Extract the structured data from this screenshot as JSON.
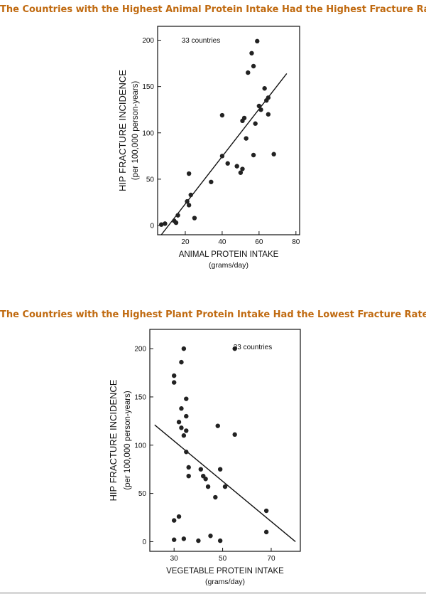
{
  "chart_data": [
    {
      "type": "scatter",
      "title": "The Countries with the Highest Animal Protein Intake Had the Highest Fracture Rates",
      "annotation": "33 countries",
      "ylabel": "HIP FRACTURE INCIDENCE",
      "ylabel_unit": "(per 100,000 person-years)",
      "xlabel": "ANIMAL PROTEIN INTAKE",
      "xlabel_unit": "(grams/day)",
      "xlim": [
        5,
        82
      ],
      "ylim": [
        -10,
        215
      ],
      "xticks": [
        20,
        40,
        60,
        80
      ],
      "yticks": [
        0,
        50,
        100,
        150,
        200
      ],
      "points": [
        [
          7,
          1
        ],
        [
          9,
          2
        ],
        [
          14,
          5
        ],
        [
          15,
          3
        ],
        [
          16,
          11
        ],
        [
          21,
          26
        ],
        [
          22,
          22
        ],
        [
          22,
          56
        ],
        [
          23,
          33
        ],
        [
          25,
          8
        ],
        [
          34,
          47
        ],
        [
          40,
          75
        ],
        [
          40,
          119
        ],
        [
          43,
          67
        ],
        [
          48,
          64
        ],
        [
          50,
          57
        ],
        [
          51,
          113
        ],
        [
          51,
          61
        ],
        [
          52,
          116
        ],
        [
          53,
          94
        ],
        [
          54,
          165
        ],
        [
          56,
          186
        ],
        [
          57,
          172
        ],
        [
          57,
          76
        ],
        [
          58,
          110
        ],
        [
          59,
          199
        ],
        [
          60,
          129
        ],
        [
          61,
          125
        ],
        [
          63,
          148
        ],
        [
          65,
          138
        ],
        [
          65,
          120
        ],
        [
          68,
          77
        ],
        [
          64,
          135
        ]
      ],
      "trend": [
        [
          7,
          -10
        ],
        [
          75,
          164
        ]
      ]
    },
    {
      "type": "scatter",
      "title": "The Countries with the Highest Plant Protein Intake Had the Lowest Fracture Rates",
      "annotation": "33 countries",
      "ylabel": "HIP FRACTURE INCIDENCE",
      "ylabel_unit": "(per 100,000 person-years)",
      "xlabel": "VEGETABLE PROTEIN INTAKE",
      "xlabel_unit": "(grams/day)",
      "xlim": [
        20,
        82
      ],
      "ylim": [
        -10,
        220
      ],
      "xticks": [
        30,
        50,
        70
      ],
      "yticks": [
        0,
        50,
        100,
        150,
        200
      ],
      "points": [
        [
          30,
          172
        ],
        [
          30,
          165
        ],
        [
          30,
          22
        ],
        [
          30,
          2
        ],
        [
          32,
          124
        ],
        [
          32,
          26
        ],
        [
          33,
          186
        ],
        [
          33,
          118
        ],
        [
          33,
          138
        ],
        [
          34,
          110
        ],
        [
          34,
          3
        ],
        [
          34,
          200
        ],
        [
          35,
          130
        ],
        [
          35,
          115
        ],
        [
          35,
          93
        ],
        [
          35,
          148
        ],
        [
          36,
          77
        ],
        [
          36,
          68
        ],
        [
          40,
          1
        ],
        [
          41,
          75
        ],
        [
          42,
          68
        ],
        [
          43,
          65
        ],
        [
          44,
          57
        ],
        [
          45,
          6
        ],
        [
          47,
          46
        ],
        [
          48,
          120
        ],
        [
          49,
          1
        ],
        [
          49,
          75
        ],
        [
          51,
          57
        ],
        [
          55,
          111
        ],
        [
          68,
          32
        ],
        [
          68,
          10
        ],
        [
          55,
          200
        ]
      ],
      "trend": [
        [
          22,
          121
        ],
        [
          80,
          0
        ]
      ]
    }
  ]
}
